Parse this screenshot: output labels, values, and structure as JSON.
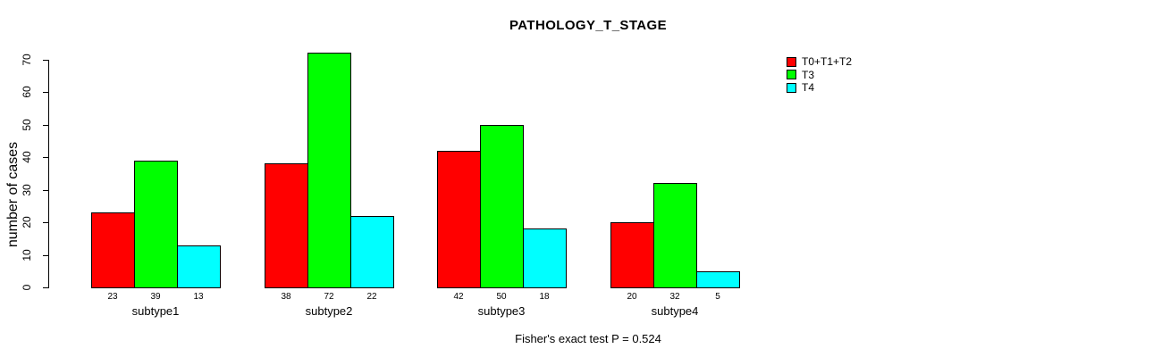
{
  "title": "PATHOLOGY_T_STAGE",
  "chart_data": {
    "type": "bar",
    "title": "PATHOLOGY_T_STAGE",
    "categories": [
      "subtype1",
      "subtype2",
      "subtype3",
      "subtype4"
    ],
    "series": [
      {
        "name": "T0+T1+T2",
        "color": "#ff0000",
        "values": [
          23,
          38,
          42,
          20
        ]
      },
      {
        "name": "T3",
        "color": "#00ff00",
        "values": [
          39,
          72,
          50,
          32
        ]
      },
      {
        "name": "T4",
        "color": "#00ffff",
        "values": [
          13,
          22,
          18,
          5
        ]
      }
    ],
    "xlabel": "",
    "ylabel": "number of cases",
    "ylim": [
      0,
      70
    ],
    "yticks": [
      0,
      10,
      20,
      30,
      40,
      50,
      60,
      70
    ],
    "grid": false,
    "bar_value_labels_shown": true,
    "legend_position": "top-right",
    "bar_border_color": "#000000",
    "annotation": "Fisher's exact test P = 0.524"
  }
}
